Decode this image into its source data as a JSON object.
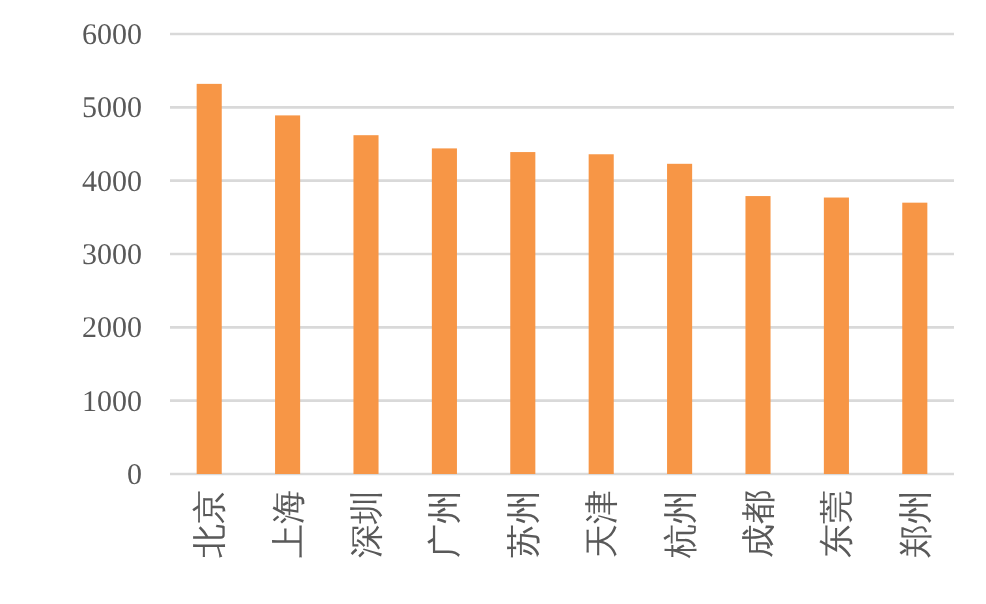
{
  "chart_data": {
    "type": "bar",
    "categories": [
      "北京",
      "上海",
      "深圳",
      "广州",
      "苏州",
      "天津",
      "杭州",
      "成都",
      "东莞",
      "郑州"
    ],
    "values": [
      5320,
      4890,
      4620,
      4440,
      4390,
      4360,
      4230,
      3790,
      3770,
      3700
    ],
    "color": "#f79646",
    "ylim": [
      0,
      6000
    ],
    "yticks": [
      0,
      1000,
      2000,
      3000,
      4000,
      5000,
      6000
    ],
    "grid": "y"
  }
}
